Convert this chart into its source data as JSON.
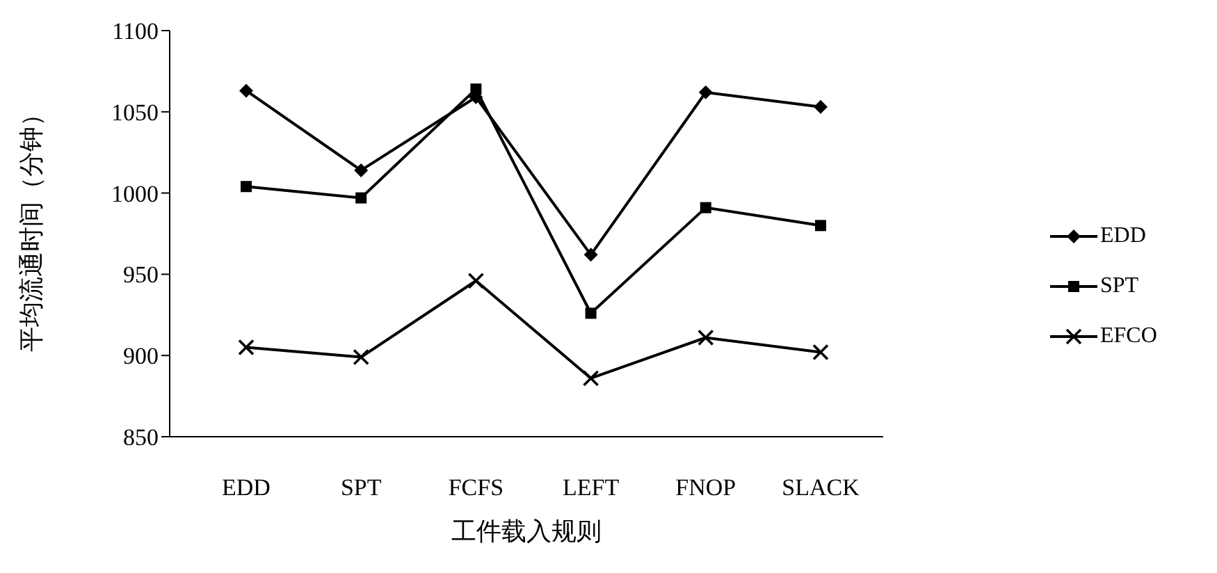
{
  "chart_data": {
    "type": "line",
    "xlabel": "工件载入规则",
    "ylabel": "平均流通时间（分钟）",
    "categories": [
      "EDD",
      "SPT",
      "FCFS",
      "LEFT",
      "FNOP",
      "SLACK"
    ],
    "series": [
      {
        "name": "EDD",
        "color": "#000000",
        "marker": "diamond",
        "values": [
          1063,
          1014,
          1059,
          962,
          1062,
          1053
        ]
      },
      {
        "name": "SPT",
        "color": "#000000",
        "marker": "square",
        "values": [
          1004,
          997,
          1064,
          926,
          991,
          980
        ]
      },
      {
        "name": "EFCO",
        "color": "#000000",
        "marker": "cross",
        "values": [
          905,
          899,
          946,
          886,
          911,
          902
        ]
      }
    ],
    "ylim": [
      850,
      1100
    ],
    "yticks": [
      850,
      900,
      950,
      1000,
      1050,
      1100
    ],
    "grid": false,
    "legend": "right",
    "line_style": "solid"
  }
}
